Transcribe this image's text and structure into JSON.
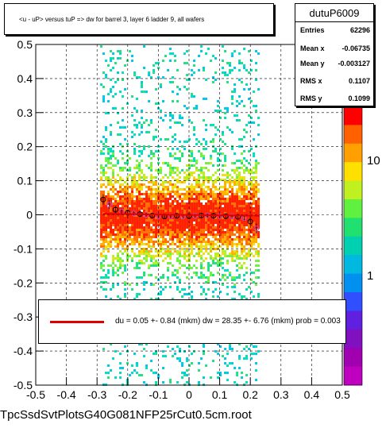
{
  "title": "<u - uP>      versus  tuP =>  dw for barrel 3, layer 6 ladder 9, all wafers",
  "stats": {
    "name": "dutuP6009",
    "rows": [
      {
        "label": "Entries",
        "value": "62296"
      },
      {
        "label": "Mean x",
        "value": "-0.06735"
      },
      {
        "label": "Mean y",
        "value": "-0.003127"
      },
      {
        "label": "RMS x",
        "value": "0.1107"
      },
      {
        "label": "RMS y",
        "value": "0.1099"
      }
    ]
  },
  "fit_text": "du =    0.05 +-  0.84 (mkm) dw =   28.35 +-  6.76 (mkm) prob = 0.003",
  "footer": "TpcSsdSvtPlotsG40G081NFP25rCut0.5cm.root",
  "colors": {
    "fit_line": "#e00000",
    "profile_marker": "#000000",
    "profile_alt_marker": "#cc44cc"
  },
  "chart_data": {
    "type": "heatmap",
    "xlim": [
      -0.5,
      0.5
    ],
    "ylim": [
      -0.5,
      0.5
    ],
    "x_ticks": [
      "-0.5",
      "-0.4",
      "-0.3",
      "-0.2",
      "-0.1",
      "0",
      "0.1",
      "0.2",
      "0.3",
      "0.4",
      "0.5"
    ],
    "y_ticks": [
      "-0.5",
      "-0.4",
      "-0.3",
      "-0.2",
      "-0.1",
      "0",
      "0.1",
      "0.2",
      "0.3",
      "0.4",
      "0.5"
    ],
    "z_scale": "log",
    "z_ticks": [
      "1",
      "10"
    ],
    "grid": true,
    "occupied_x_range": [
      -0.29,
      0.23
    ],
    "profile_x": [
      -0.28,
      -0.26,
      -0.24,
      -0.22,
      -0.2,
      -0.18,
      -0.16,
      -0.14,
      -0.12,
      -0.1,
      -0.08,
      -0.06,
      -0.04,
      -0.02,
      0.0,
      0.02,
      0.04,
      0.06,
      0.08,
      0.1,
      0.12,
      0.14,
      0.16,
      0.18,
      0.2,
      0.22
    ],
    "profile_y": [
      0.045,
      0.03,
      0.015,
      0.01,
      0.006,
      0.004,
      0.002,
      0.0,
      -0.002,
      -0.004,
      -0.005,
      -0.004,
      -0.003,
      -0.005,
      -0.004,
      -0.003,
      -0.002,
      -0.002,
      -0.003,
      -0.004,
      -0.004,
      -0.005,
      -0.006,
      -0.01,
      -0.02,
      -0.04
    ],
    "fit_line": {
      "x": [
        -0.28,
        0.23
      ],
      "y": [
        0.003,
        -0.003
      ]
    }
  }
}
